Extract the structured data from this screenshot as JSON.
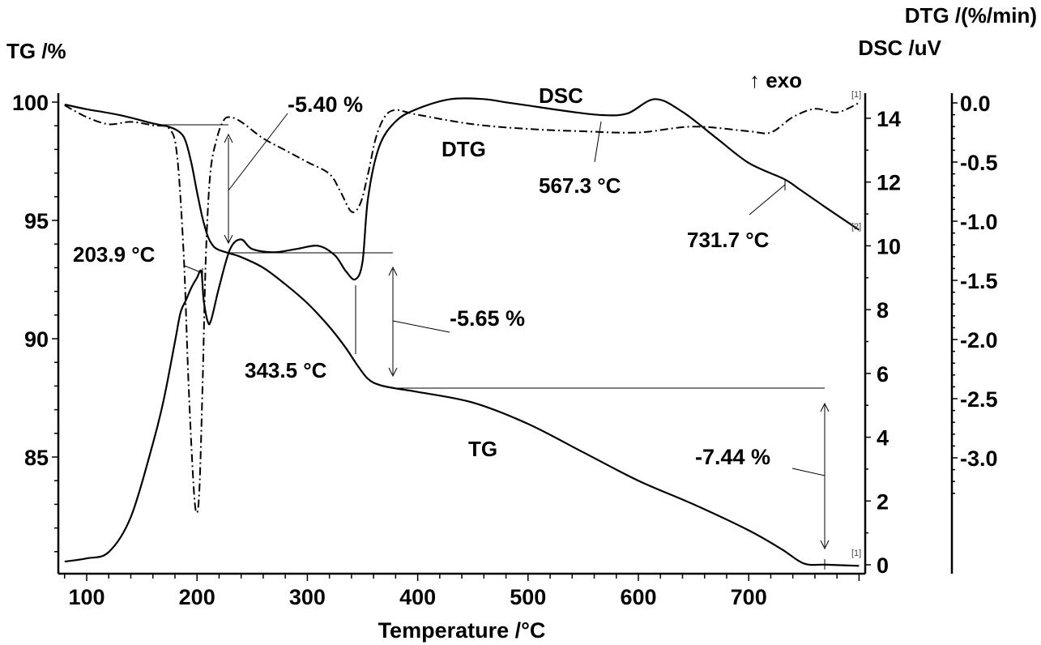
{
  "chart_data": {
    "type": "line",
    "title": "",
    "xlabel": "Temperature /°C",
    "xlim": [
      74,
      805
    ],
    "x_ticks": [
      100,
      200,
      300,
      400,
      500,
      600,
      700
    ],
    "grid": false,
    "axes": {
      "tg": {
        "label": "TG /%",
        "side": "left",
        "ylim": [
          80.3,
          100.1
        ],
        "ticks": [
          85,
          90,
          95,
          100
        ],
        "tick_labels": [
          "85",
          "90",
          "95",
          "100"
        ]
      },
      "dsc": {
        "label": "DSC /uV",
        "side": "right",
        "ylim": [
          -0.3,
          14.8
        ],
        "ticks": [
          0,
          2,
          4,
          6,
          8,
          10,
          12,
          14
        ],
        "tick_labels": [
          "0",
          "2",
          "4",
          "6",
          "8",
          "10",
          "12",
          "14"
        ],
        "note": "↑ exo"
      },
      "dtg": {
        "label": "DTG /(%/min)",
        "side": "right-outer",
        "ylim": [
          -3.45,
          0.05
        ],
        "ticks": [
          0.0,
          -0.5,
          -1.0,
          -1.5,
          -2.0,
          -2.5,
          -3.0
        ],
        "tick_labels": [
          "0.0",
          "-0.5",
          "-1.0",
          "-1.5",
          "-2.0",
          "-2.5",
          "-3.0"
        ]
      }
    },
    "series": [
      {
        "name": "TG",
        "axis": "tg",
        "style": "solid",
        "x": [
          80,
          100,
          130,
          160,
          175,
          185,
          190,
          195,
          200,
          205,
          210,
          215,
          220,
          230,
          240,
          260,
          280,
          300,
          320,
          335,
          345,
          355,
          365,
          380,
          400,
          450,
          500,
          550,
          600,
          650,
          700,
          730,
          750,
          770,
          800
        ],
        "y": [
          99.9,
          99.7,
          99.45,
          99.1,
          98.95,
          98.7,
          98.3,
          97.4,
          96.2,
          95.1,
          94.3,
          93.9,
          93.75,
          93.6,
          93.45,
          93.0,
          92.3,
          91.5,
          90.5,
          89.6,
          88.9,
          88.3,
          88.05,
          87.9,
          87.75,
          87.3,
          86.4,
          85.2,
          84.0,
          83.0,
          81.9,
          81.1,
          80.5,
          80.45,
          80.4
        ]
      },
      {
        "name": "DSC",
        "axis": "dsc",
        "style": "solid",
        "x": [
          80,
          100,
          120,
          140,
          160,
          170,
          180,
          185,
          190,
          195,
          200,
          203.9,
          206,
          210,
          213,
          220,
          230,
          240,
          250,
          270,
          290,
          310,
          325,
          335,
          343.5,
          350,
          355,
          365,
          380,
          400,
          430,
          460,
          480,
          500,
          540,
          567.3,
          590,
          615,
          640,
          670,
          700,
          731.7,
          745,
          770,
          800
        ],
        "y": [
          0.1,
          0.2,
          0.4,
          1.5,
          3.8,
          5.2,
          7.0,
          7.9,
          8.3,
          8.7,
          9.0,
          9.2,
          8.3,
          7.6,
          7.7,
          8.7,
          9.9,
          10.2,
          9.9,
          9.8,
          9.9,
          10.0,
          9.7,
          9.2,
          8.95,
          9.5,
          11.5,
          13.1,
          13.9,
          14.3,
          14.6,
          14.6,
          14.5,
          14.4,
          14.2,
          14.1,
          14.15,
          14.6,
          14.2,
          13.4,
          12.6,
          12.1,
          11.8,
          11.2,
          10.5
        ]
      },
      {
        "name": "DTG",
        "axis": "dtg",
        "style": "dash-dot",
        "x": [
          80,
          100,
          120,
          140,
          160,
          175,
          182,
          188,
          192,
          196,
          199,
          202,
          205,
          208,
          212,
          218,
          224,
          230,
          240,
          260,
          280,
          300,
          320,
          330,
          340,
          348,
          355,
          362,
          370,
          380,
          400,
          450,
          500,
          550,
          600,
          650,
          700,
          720,
          740,
          760,
          780,
          800
        ],
        "y": [
          -0.02,
          -0.12,
          -0.18,
          -0.16,
          -0.19,
          -0.22,
          -0.45,
          -1.3,
          -2.3,
          -3.1,
          -3.45,
          -3.3,
          -2.4,
          -1.3,
          -0.6,
          -0.3,
          -0.15,
          -0.12,
          -0.16,
          -0.3,
          -0.4,
          -0.5,
          -0.6,
          -0.75,
          -0.92,
          -0.85,
          -0.6,
          -0.3,
          -0.12,
          -0.06,
          -0.1,
          -0.18,
          -0.22,
          -0.24,
          -0.25,
          -0.2,
          -0.24,
          -0.25,
          -0.12,
          -0.05,
          -0.08,
          -0.0
        ]
      }
    ],
    "annotations": [
      {
        "text": "-5.40 %",
        "type": "mass-step"
      },
      {
        "text": "-5.65 %",
        "type": "mass-step"
      },
      {
        "text": "-7.44 %",
        "type": "mass-step"
      },
      {
        "text": "203.9 °C",
        "type": "peak"
      },
      {
        "text": "343.5 °C",
        "type": "peak"
      },
      {
        "text": "567.3 °C",
        "type": "peak"
      },
      {
        "text": "731.7 °C",
        "type": "peak"
      },
      {
        "text": "DSC",
        "type": "curve-label"
      },
      {
        "text": "DTG",
        "type": "curve-label"
      },
      {
        "text": "TG",
        "type": "curve-label"
      },
      {
        "text": "[1]",
        "type": "curve-end-marker"
      },
      {
        "text": "[2]",
        "type": "curve-end-marker"
      }
    ]
  },
  "labels": {
    "tg_axis": "TG /%",
    "dtg_axis": "DTG /(%/min)",
    "dsc_axis": "DSC /uV",
    "exo": "↑ exo",
    "x_axis": "Temperature /°C",
    "dsc_curve": "DSC",
    "dtg_curve": "DTG",
    "tg_curve": "TG",
    "step1": "-5.40 %",
    "step2": "-5.65 %",
    "step3": "-7.44 %",
    "peak1": "203.9 °C",
    "peak2": "343.5 °C",
    "peak3": "567.3 °C",
    "peak4": "731.7 °C",
    "marker1": "[1]",
    "marker2": "[2]",
    "marker3": "[1]"
  }
}
